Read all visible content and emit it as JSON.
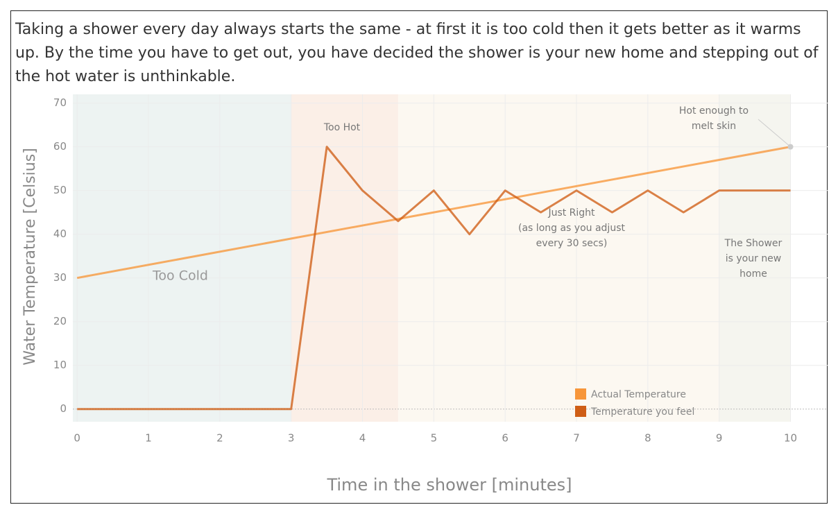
{
  "chart_data": {
    "type": "line",
    "title": "Taking a shower every day always starts the same - at first it is too cold then it gets better as it warms up. By the time you have to get out, you have decided the shower is your new home and stepping out of the hot water is unthinkable.",
    "x_label": "Time in the shower [minutes]",
    "y_label": "Water Temperature [Celsius]",
    "xlim": [
      -0.06,
      10.52
    ],
    "ylim": [
      -2.9,
      72
    ],
    "xticks": [
      0,
      1,
      2,
      3,
      4,
      5,
      6,
      7,
      8,
      9,
      10
    ],
    "yticks": [
      0,
      10,
      20,
      30,
      40,
      50,
      60,
      70
    ],
    "grid": true,
    "series": [
      {
        "name": "Actual Temperature",
        "color": "#f7963a",
        "x": [
          0,
          10
        ],
        "values": [
          30,
          60
        ]
      },
      {
        "name": "Temperature you feel",
        "color": "#cf5e16",
        "x": [
          0,
          0.5,
          1,
          1.5,
          2,
          2.5,
          3,
          3.5,
          4,
          4.5,
          5,
          5.5,
          6,
          6.5,
          7,
          7.5,
          8,
          8.5,
          9,
          9.5,
          10
        ],
        "values": [
          0,
          0,
          0,
          0,
          0,
          0,
          0,
          60,
          50,
          43,
          50,
          40,
          50,
          45,
          50,
          45,
          50,
          45,
          50,
          50,
          50
        ]
      }
    ],
    "bands": [
      {
        "lines": [
          "Too Cold"
        ],
        "start": -0.06,
        "end": 3,
        "color": "#edf3f2"
      },
      {
        "lines": [
          "Too Hot"
        ],
        "start": 3,
        "end": 4.5,
        "color": "#fbefe7"
      },
      {
        "lines": [
          "Just Right",
          "(as long as you adjust",
          "every 30 secs)"
        ],
        "start": 4.5,
        "end": 9,
        "color": "#fcf8f1"
      },
      {
        "lines": [
          "The Shower",
          "is your new",
          "home"
        ],
        "start": 9,
        "end": 10,
        "color": "#f5f5ef"
      }
    ],
    "annotation": {
      "lines": [
        "Hot enough to",
        "melt skin"
      ]
    }
  }
}
